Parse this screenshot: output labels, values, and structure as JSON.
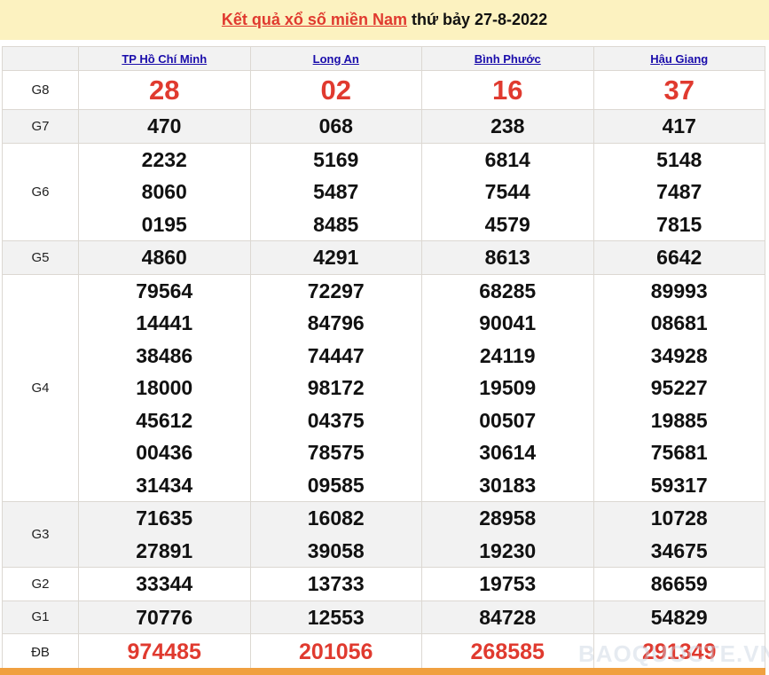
{
  "title": {
    "link": "Kết quả xổ số miền Nam",
    "rest": " thứ bảy 27-8-2022"
  },
  "provinces": [
    "TP Hồ Chí Minh",
    "Long An",
    "Bình Phước",
    "Hậu Giang"
  ],
  "prizes": [
    {
      "label": "G8",
      "values": [
        [
          "28"
        ],
        [
          "02"
        ],
        [
          "16"
        ],
        [
          "37"
        ]
      ]
    },
    {
      "label": "G7",
      "values": [
        [
          "470"
        ],
        [
          "068"
        ],
        [
          "238"
        ],
        [
          "417"
        ]
      ]
    },
    {
      "label": "G6",
      "values": [
        [
          "2232",
          "8060",
          "0195"
        ],
        [
          "5169",
          "5487",
          "8485"
        ],
        [
          "6814",
          "7544",
          "4579"
        ],
        [
          "5148",
          "7487",
          "7815"
        ]
      ]
    },
    {
      "label": "G5",
      "values": [
        [
          "4860"
        ],
        [
          "4291"
        ],
        [
          "8613"
        ],
        [
          "6642"
        ]
      ]
    },
    {
      "label": "G4",
      "values": [
        [
          "79564",
          "14441",
          "38486",
          "18000",
          "45612",
          "00436",
          "31434"
        ],
        [
          "72297",
          "84796",
          "74447",
          "98172",
          "04375",
          "78575",
          "09585"
        ],
        [
          "68285",
          "90041",
          "24119",
          "19509",
          "00507",
          "30614",
          "30183"
        ],
        [
          "89993",
          "08681",
          "34928",
          "95227",
          "19885",
          "75681",
          "59317"
        ]
      ]
    },
    {
      "label": "G3",
      "values": [
        [
          "71635",
          "27891"
        ],
        [
          "16082",
          "39058"
        ],
        [
          "28958",
          "19230"
        ],
        [
          "10728",
          "34675"
        ]
      ]
    },
    {
      "label": "G2",
      "values": [
        [
          "33344"
        ],
        [
          "13733"
        ],
        [
          "19753"
        ],
        [
          "86659"
        ]
      ]
    },
    {
      "label": "G1",
      "values": [
        [
          "70776"
        ],
        [
          "12553"
        ],
        [
          "84728"
        ],
        [
          "54829"
        ]
      ]
    },
    {
      "label": "ĐB",
      "values": [
        [
          "974485"
        ],
        [
          "201056"
        ],
        [
          "268585"
        ],
        [
          "291349"
        ]
      ]
    }
  ],
  "watermark": "BAOQUOCTE.VN"
}
